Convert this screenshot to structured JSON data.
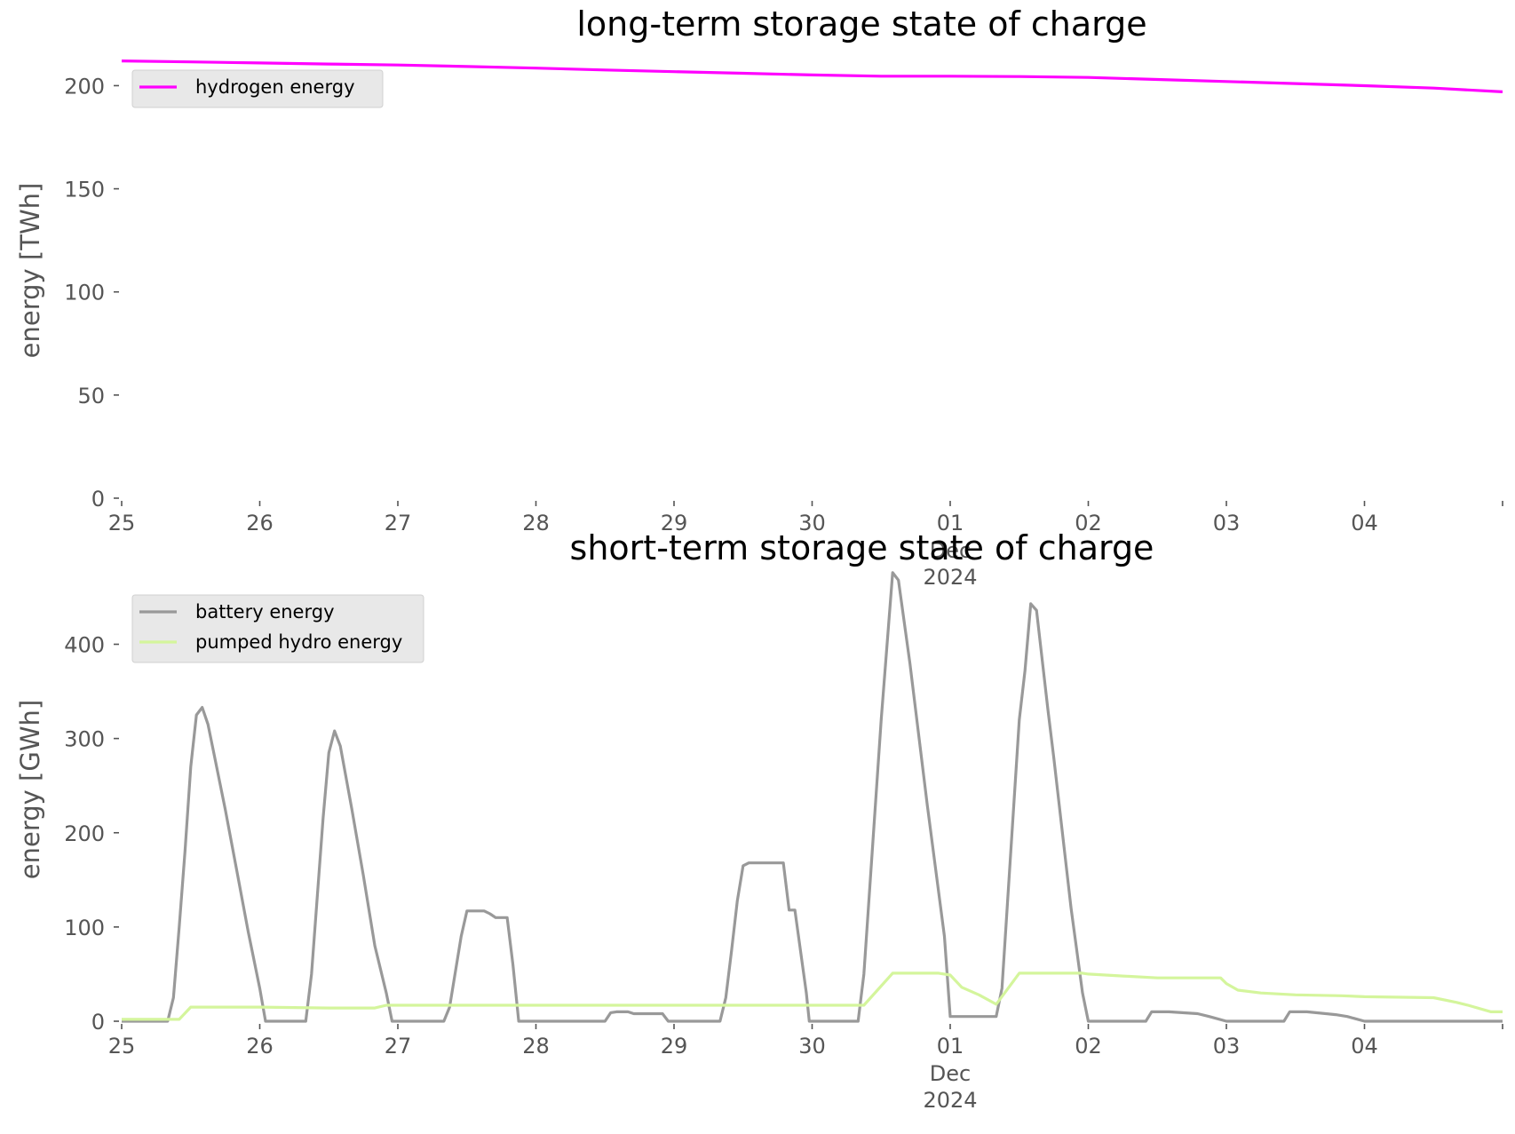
{
  "colors": {
    "hydrogen": "#ff00ff",
    "battery": "#999999",
    "pumped_hydro": "#d4f59c"
  },
  "chart_data": [
    {
      "type": "line",
      "title": "long-term storage state of charge",
      "ylabel": "energy [TWh]",
      "xlabel": "",
      "ylim": [
        0,
        220
      ],
      "yticks": [
        0,
        50,
        100,
        150,
        200
      ],
      "xlim": [
        "2024-11-25",
        "2024-12-05"
      ],
      "x_tick_labels": [
        "25",
        "26",
        "27",
        "28",
        "29",
        "30",
        "01",
        "02",
        "03",
        "04"
      ],
      "x_month_label": "Dec",
      "x_year_label": "2024",
      "legend": "top-left",
      "grid": false,
      "series": [
        {
          "name": "hydrogen energy",
          "color": "#ff00ff",
          "points": [
            [
              "2024-11-25T00:00",
              212
            ],
            [
              "2024-11-25T12:00",
              211.5
            ],
            [
              "2024-11-26T00:00",
              211
            ],
            [
              "2024-11-26T12:00",
              210.5
            ],
            [
              "2024-11-27T00:00",
              210
            ],
            [
              "2024-11-27T12:00",
              209.3
            ],
            [
              "2024-11-28T00:00",
              208.5
            ],
            [
              "2024-11-28T12:00",
              207.6
            ],
            [
              "2024-11-29T00:00",
              206.8
            ],
            [
              "2024-11-29T12:00",
              206
            ],
            [
              "2024-11-30T00:00",
              205.2
            ],
            [
              "2024-11-30T12:00",
              204.6
            ],
            [
              "2024-12-01T00:00",
              204.6
            ],
            [
              "2024-12-01T12:00",
              204.4
            ],
            [
              "2024-12-02T00:00",
              204
            ],
            [
              "2024-12-02T12:00",
              203
            ],
            [
              "2024-12-03T00:00",
              202
            ],
            [
              "2024-12-03T12:00",
              201
            ],
            [
              "2024-12-04T00:00",
              200
            ],
            [
              "2024-12-04T12:00",
              198.8
            ],
            [
              "2024-12-05T00:00",
              197
            ]
          ]
        }
      ]
    },
    {
      "type": "line",
      "title": "short-term storage state of charge",
      "ylabel": "energy [GWh]",
      "xlabel": "",
      "ylim": [
        0,
        490
      ],
      "yticks": [
        0,
        100,
        200,
        300,
        400
      ],
      "xlim": [
        "2024-11-25",
        "2024-12-05"
      ],
      "x_tick_labels": [
        "25",
        "26",
        "27",
        "28",
        "29",
        "30",
        "01",
        "02",
        "03",
        "04"
      ],
      "x_month_label": "Dec",
      "x_year_label": "2024",
      "legend": "top-left",
      "grid": false,
      "series": [
        {
          "name": "battery energy",
          "color": "#999999",
          "points": [
            [
              "2024-11-25T00:00",
              0
            ],
            [
              "2024-11-25T08:00",
              0
            ],
            [
              "2024-11-25T09:00",
              25
            ],
            [
              "2024-11-25T10:00",
              100
            ],
            [
              "2024-11-25T11:00",
              180
            ],
            [
              "2024-11-25T12:00",
              270
            ],
            [
              "2024-11-25T13:00",
              325
            ],
            [
              "2024-11-25T14:00",
              333
            ],
            [
              "2024-11-25T15:00",
              315
            ],
            [
              "2024-11-25T16:00",
              285
            ],
            [
              "2024-11-25T18:00",
              225
            ],
            [
              "2024-11-25T20:00",
              160
            ],
            [
              "2024-11-25T22:00",
              95
            ],
            [
              "2024-11-26T00:00",
              35
            ],
            [
              "2024-11-26T01:00",
              0
            ],
            [
              "2024-11-26T08:00",
              0
            ],
            [
              "2024-11-26T09:00",
              50
            ],
            [
              "2024-11-26T11:00",
              215
            ],
            [
              "2024-11-26T12:00",
              285
            ],
            [
              "2024-11-26T13:00",
              308
            ],
            [
              "2024-11-26T14:00",
              292
            ],
            [
              "2024-11-26T16:00",
              225
            ],
            [
              "2024-11-26T18:00",
              155
            ],
            [
              "2024-11-26T20:00",
              80
            ],
            [
              "2024-11-26T22:00",
              30
            ],
            [
              "2024-11-26T23:00",
              0
            ],
            [
              "2024-11-27T08:00",
              0
            ],
            [
              "2024-11-27T09:00",
              15
            ],
            [
              "2024-11-27T11:00",
              90
            ],
            [
              "2024-11-27T12:00",
              117
            ],
            [
              "2024-11-27T15:00",
              117
            ],
            [
              "2024-11-27T16:00",
              114
            ],
            [
              "2024-11-27T17:00",
              110
            ],
            [
              "2024-11-27T19:00",
              110
            ],
            [
              "2024-11-27T20:00",
              60
            ],
            [
              "2024-11-27T21:00",
              0
            ],
            [
              "2024-11-28T12:00",
              0
            ],
            [
              "2024-11-28T13:00",
              9
            ],
            [
              "2024-11-28T14:00",
              10
            ],
            [
              "2024-11-28T16:00",
              10
            ],
            [
              "2024-11-28T17:00",
              8
            ],
            [
              "2024-11-28T22:00",
              8
            ],
            [
              "2024-11-28T23:00",
              0
            ],
            [
              "2024-11-29T08:00",
              0
            ],
            [
              "2024-11-29T09:00",
              25
            ],
            [
              "2024-11-29T10:00",
              75
            ],
            [
              "2024-11-29T11:00",
              128
            ],
            [
              "2024-11-29T12:00",
              165
            ],
            [
              "2024-11-29T13:00",
              168
            ],
            [
              "2024-11-29T19:00",
              168
            ],
            [
              "2024-11-29T20:00",
              118
            ],
            [
              "2024-11-29T21:00",
              118
            ],
            [
              "2024-11-29T23:00",
              30
            ],
            [
              "2024-11-29T23:30",
              0
            ],
            [
              "2024-11-30T08:00",
              0
            ],
            [
              "2024-11-30T09:00",
              50
            ],
            [
              "2024-11-30T12:00",
              320
            ],
            [
              "2024-11-30T14:00",
              476
            ],
            [
              "2024-11-30T15:00",
              468
            ],
            [
              "2024-11-30T17:00",
              380
            ],
            [
              "2024-11-30T20:00",
              230
            ],
            [
              "2024-11-30T23:00",
              90
            ],
            [
              "2024-12-01T00:00",
              5
            ],
            [
              "2024-12-01T08:00",
              5
            ],
            [
              "2024-12-01T09:00",
              35
            ],
            [
              "2024-12-01T12:00",
              320
            ],
            [
              "2024-12-01T13:00",
              372
            ],
            [
              "2024-12-01T14:00",
              443
            ],
            [
              "2024-12-01T15:00",
              436
            ],
            [
              "2024-12-01T17:00",
              330
            ],
            [
              "2024-12-01T18:00",
              280
            ],
            [
              "2024-12-01T21:00",
              120
            ],
            [
              "2024-12-01T23:00",
              30
            ],
            [
              "2024-12-02T00:00",
              0
            ],
            [
              "2024-12-02T10:00",
              0
            ],
            [
              "2024-12-02T11:00",
              10
            ],
            [
              "2024-12-02T14:00",
              10
            ],
            [
              "2024-12-02T19:00",
              8
            ],
            [
              "2024-12-02T21:00",
              5
            ],
            [
              "2024-12-03T00:00",
              0
            ],
            [
              "2024-12-03T10:00",
              0
            ],
            [
              "2024-12-03T11:00",
              10
            ],
            [
              "2024-12-03T14:00",
              10
            ],
            [
              "2024-12-03T19:00",
              7
            ],
            [
              "2024-12-03T21:00",
              5
            ],
            [
              "2024-12-04T00:00",
              0
            ],
            [
              "2024-12-05T00:00",
              0
            ]
          ]
        },
        {
          "name": "pumped hydro energy",
          "color": "#d4f59c",
          "points": [
            [
              "2024-11-25T00:00",
              2
            ],
            [
              "2024-11-25T10:00",
              2
            ],
            [
              "2024-11-25T12:00",
              15
            ],
            [
              "2024-11-26T00:00",
              15
            ],
            [
              "2024-11-26T12:00",
              14
            ],
            [
              "2024-11-26T20:00",
              14
            ],
            [
              "2024-11-26T22:00",
              17
            ],
            [
              "2024-11-27T00:00",
              17
            ],
            [
              "2024-11-30T09:00",
              17
            ],
            [
              "2024-11-30T14:00",
              51
            ],
            [
              "2024-11-30T22:00",
              51
            ],
            [
              "2024-12-01T00:00",
              49
            ],
            [
              "2024-12-01T02:00",
              36
            ],
            [
              "2024-12-01T05:00",
              28
            ],
            [
              "2024-12-01T08:00",
              18
            ],
            [
              "2024-12-01T12:00",
              51
            ],
            [
              "2024-12-01T23:00",
              51
            ],
            [
              "2024-12-02T00:00",
              50
            ],
            [
              "2024-12-02T06:00",
              48
            ],
            [
              "2024-12-02T12:00",
              46
            ],
            [
              "2024-12-02T23:00",
              46
            ],
            [
              "2024-12-03T00:00",
              40
            ],
            [
              "2024-12-03T02:00",
              33
            ],
            [
              "2024-12-03T06:00",
              30
            ],
            [
              "2024-12-03T12:00",
              28
            ],
            [
              "2024-12-03T20:00",
              27
            ],
            [
              "2024-12-04T00:00",
              26
            ],
            [
              "2024-12-04T12:00",
              25
            ],
            [
              "2024-12-04T16:00",
              20
            ],
            [
              "2024-12-04T18:00",
              17
            ],
            [
              "2024-12-04T22:00",
              10
            ],
            [
              "2024-12-05T00:00",
              10
            ]
          ]
        }
      ]
    }
  ]
}
